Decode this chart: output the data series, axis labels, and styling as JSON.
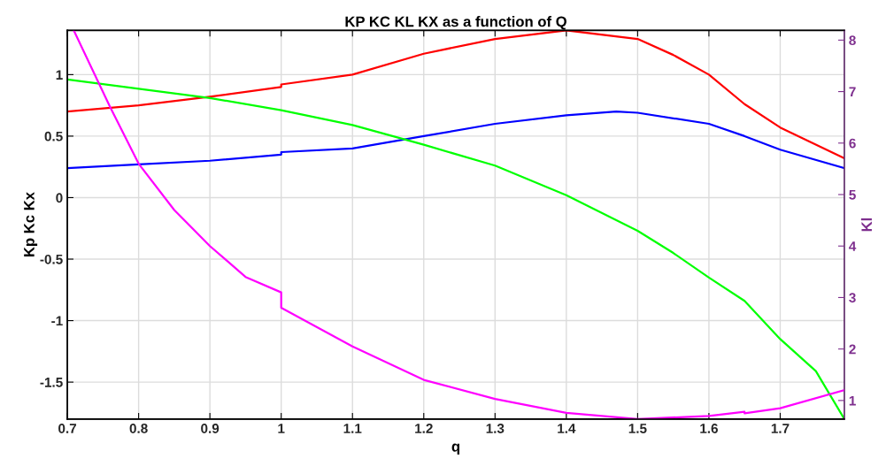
{
  "chart_data": {
    "type": "line",
    "title": "KP KC KL KX as a function of Q",
    "xlabel": "q",
    "ylabel": "Kp Kc Kx",
    "y2label": "Kl",
    "xlim": [
      0.7,
      1.79
    ],
    "xticks": [
      {
        "value": 0.7,
        "label": "0.7"
      },
      {
        "value": 0.8,
        "label": "0.8"
      },
      {
        "value": 0.9,
        "label": "0.9"
      },
      {
        "value": 1,
        "label": "1"
      },
      {
        "value": 1.1,
        "label": "1.1"
      },
      {
        "value": 1.2,
        "label": "1.2"
      },
      {
        "value": 1.3,
        "label": "1.3"
      },
      {
        "value": 1.4,
        "label": "1.4"
      },
      {
        "value": 1.5,
        "label": "1.5"
      },
      {
        "value": 1.6,
        "label": "1.6"
      },
      {
        "value": 1.7,
        "label": "1.7"
      }
    ],
    "ylim": [
      -1.8,
      1.36
    ],
    "yticks": [
      -1.5,
      -1,
      -0.5,
      0,
      0.5,
      1
    ],
    "y2lim": [
      0.64,
      8.19
    ],
    "y2ticks": [
      1,
      2,
      3,
      4,
      5,
      6,
      7,
      8
    ],
    "grid": true,
    "line_style": "solid",
    "series": [
      {
        "color": "#ff0000",
        "x": [
          0.7,
          0.8,
          0.9,
          1.0,
          1.0,
          1.1,
          1.2,
          1.3,
          1.4,
          1.5,
          1.55,
          1.6,
          1.65,
          1.7,
          1.79
        ],
        "values": [
          0.7,
          0.75,
          0.82,
          0.9,
          0.92,
          1.0,
          1.17,
          1.29,
          1.36,
          1.29,
          1.16,
          1.0,
          0.76,
          0.57,
          0.32
        ]
      },
      {
        "color": "#0000ff",
        "x": [
          0.7,
          0.8,
          0.9,
          1.0,
          1.0,
          1.1,
          1.2,
          1.3,
          1.4,
          1.47,
          1.5,
          1.6,
          1.65,
          1.7,
          1.79
        ],
        "values": [
          0.24,
          0.27,
          0.3,
          0.35,
          0.37,
          0.4,
          0.5,
          0.6,
          0.67,
          0.7,
          0.69,
          0.6,
          0.5,
          0.39,
          0.24
        ]
      },
      {
        "color": "#00ff00",
        "x": [
          0.7,
          0.9,
          1.0,
          1.1,
          1.2,
          1.3,
          1.4,
          1.5,
          1.55,
          1.6,
          1.65,
          1.7,
          1.75,
          1.79
        ],
        "values": [
          0.96,
          0.81,
          0.71,
          0.59,
          0.43,
          0.26,
          0.02,
          -0.27,
          -0.45,
          -0.65,
          -0.84,
          -1.15,
          -1.41,
          -1.8
        ]
      },
      {
        "color": "#ff00ff",
        "axis": "y2",
        "x": [
          0.709,
          0.76,
          0.8,
          0.85,
          0.9,
          0.95,
          1.0,
          1.0,
          1.1,
          1.2,
          1.3,
          1.4,
          1.5,
          1.6,
          1.65,
          1.65,
          1.7,
          1.79
        ],
        "values": [
          8.19,
          6.7,
          5.6,
          4.7,
          4.0,
          3.4,
          3.1,
          2.8,
          2.05,
          1.4,
          1.03,
          0.76,
          0.64,
          0.7,
          0.78,
          0.75,
          0.85,
          1.2
        ]
      }
    ]
  }
}
